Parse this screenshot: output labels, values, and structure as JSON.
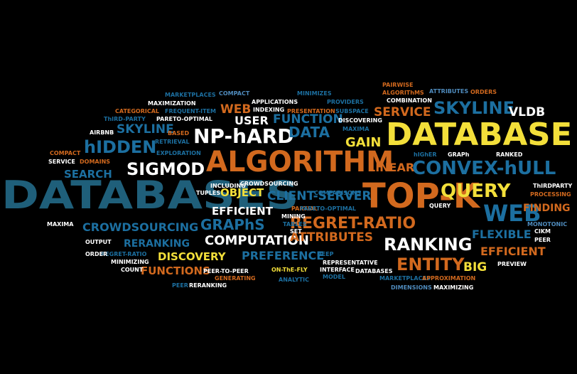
{
  "colors": {
    "background": "#000000",
    "white": "#ffffff",
    "yellow": "#f3df3a",
    "orange": "#d2691e",
    "blue": "#1c6fa0",
    "teal": "#1f5f7a",
    "light_blue": "#4f8bbd"
  },
  "words": [
    {
      "text": "DATABASES",
      "color": "teal"
    },
    {
      "text": "DATABASE",
      "color": "yellow"
    },
    {
      "text": "ALGORITHM",
      "color": "orange"
    },
    {
      "text": "TOP-K",
      "color": "orange"
    },
    {
      "text": "NP-hARD",
      "color": "white"
    },
    {
      "text": "SIGMOD",
      "color": "white"
    },
    {
      "text": "CONVEX-hULL",
      "color": "blue"
    },
    {
      "text": "QUERY",
      "color": "yellow"
    },
    {
      "text": "WEB",
      "color": "blue"
    },
    {
      "text": "WEB",
      "color": "orange"
    },
    {
      "text": "SKYLINE",
      "color": "blue"
    },
    {
      "text": "SKYLINE",
      "color": "blue"
    },
    {
      "text": "hIDDEN",
      "color": "blue"
    },
    {
      "text": "DATA",
      "color": "blue"
    },
    {
      "text": "FUNCTION",
      "color": "blue"
    },
    {
      "text": "SERVICE",
      "color": "orange"
    },
    {
      "text": "VLDB",
      "color": "white"
    },
    {
      "text": "GAIN",
      "color": "yellow"
    },
    {
      "text": "USER",
      "color": "white"
    },
    {
      "text": "LINEAR",
      "color": "orange"
    },
    {
      "text": "SEARCH",
      "color": "blue"
    },
    {
      "text": "REGRET-RATIO",
      "color": "orange"
    },
    {
      "text": "RANKING",
      "color": "white"
    },
    {
      "text": "GRAPhS",
      "color": "blue"
    },
    {
      "text": "CROWDSOURCING",
      "color": "blue"
    },
    {
      "text": "COMPUTATION",
      "color": "white"
    },
    {
      "text": "ATTRIBUTES",
      "color": "orange"
    },
    {
      "text": "CLIENT-SERVER",
      "color": "blue"
    },
    {
      "text": "OBJECT",
      "color": "yellow"
    },
    {
      "text": "EFFICIENT",
      "color": "white"
    },
    {
      "text": "EFFICIENT",
      "color": "orange"
    },
    {
      "text": "ENTITY",
      "color": "orange"
    },
    {
      "text": "BIG",
      "color": "yellow"
    },
    {
      "text": "FINDING",
      "color": "orange"
    },
    {
      "text": "FLEXIBLE",
      "color": "blue"
    },
    {
      "text": "PREFERENCE",
      "color": "blue"
    },
    {
      "text": "DISCOVERY",
      "color": "yellow"
    },
    {
      "text": "FUNCTIONS",
      "color": "orange"
    },
    {
      "text": "RERANKING",
      "color": "blue"
    },
    {
      "text": "MONOTONIC",
      "color": "light_blue"
    },
    {
      "text": "PROCESSING",
      "color": "orange"
    },
    {
      "text": "ThIRDPARTY",
      "color": "white"
    },
    {
      "text": "MAXIMA",
      "color": "white"
    },
    {
      "text": "PAIRWISE",
      "color": "orange"
    },
    {
      "text": "ALGORIThMS",
      "color": "orange"
    },
    {
      "text": "ATTRIBUTES",
      "color": "light_blue"
    },
    {
      "text": "ORDERS",
      "color": "orange"
    },
    {
      "text": "COMBINATION",
      "color": "white"
    },
    {
      "text": "MARKETPLACES",
      "color": "blue"
    },
    {
      "text": "COMPACT",
      "color": "light_blue"
    },
    {
      "text": "MAXIMIZATION",
      "color": "white"
    },
    {
      "text": "APPLICATIONS",
      "color": "white"
    },
    {
      "text": "MINIMIZES",
      "color": "blue"
    },
    {
      "text": "PROVIDERS",
      "color": "blue"
    },
    {
      "text": "CATEGORICAL",
      "color": "orange"
    },
    {
      "text": "FREQUENT-ITEM",
      "color": "blue"
    },
    {
      "text": "INDEXING",
      "color": "white"
    },
    {
      "text": "PRESENTATION",
      "color": "orange"
    },
    {
      "text": "SUBSPACE",
      "color": "blue"
    },
    {
      "text": "ThIRD-PARTY",
      "color": "blue"
    },
    {
      "text": "PARETO-OPTIMAL",
      "color": "white"
    },
    {
      "text": "DISCOVERING",
      "color": "white"
    },
    {
      "text": "MAXIMA",
      "color": "blue"
    },
    {
      "text": "AIRBNB",
      "color": "white"
    },
    {
      "text": "BASED",
      "color": "orange"
    },
    {
      "text": "RETRIEVAL",
      "color": "blue"
    },
    {
      "text": "COMPACT",
      "color": "orange"
    },
    {
      "text": "SERVICE",
      "color": "white"
    },
    {
      "text": "DOMAINS",
      "color": "orange"
    },
    {
      "text": "EXPLORATION",
      "color": "blue"
    },
    {
      "text": "hIGhER",
      "color": "blue"
    },
    {
      "text": "GRAPh",
      "color": "white"
    },
    {
      "text": "RANKED",
      "color": "white"
    },
    {
      "text": "TUPLES",
      "color": "white"
    },
    {
      "text": "INCLUDING",
      "color": "white"
    },
    {
      "text": "CROWDSOURCING",
      "color": "white"
    },
    {
      "text": "COMPARISONS",
      "color": "blue"
    },
    {
      "text": "PARTIAL",
      "color": "orange"
    },
    {
      "text": "PARETO-OPTIMAL",
      "color": "blue"
    },
    {
      "text": "QUERY",
      "color": "white"
    },
    {
      "text": "MINING",
      "color": "white"
    },
    {
      "text": "TABLES",
      "color": "blue"
    },
    {
      "text": "SET",
      "color": "white"
    },
    {
      "text": "OUTPUT",
      "color": "white"
    },
    {
      "text": "REGRET-RATIO",
      "color": "blue"
    },
    {
      "text": "ORDER",
      "color": "white"
    },
    {
      "text": "MINIMIZING",
      "color": "white"
    },
    {
      "text": "COUNT",
      "color": "white"
    },
    {
      "text": "DEEP",
      "color": "blue"
    },
    {
      "text": "REPRESENTATIVE",
      "color": "white"
    },
    {
      "text": "PEER-TO-PEER",
      "color": "white"
    },
    {
      "text": "GENERATING",
      "color": "orange"
    },
    {
      "text": "ON-ThE-FLY",
      "color": "yellow"
    },
    {
      "text": "INTERFACE",
      "color": "white"
    },
    {
      "text": "MODEL",
      "color": "blue"
    },
    {
      "text": "DATABASES",
      "color": "white"
    },
    {
      "text": "ANALYTIC",
      "color": "blue"
    },
    {
      "text": "MARKETPLACES",
      "color": "blue"
    },
    {
      "text": "APPROXIMATION",
      "color": "orange"
    },
    {
      "text": "DIMENSIONS",
      "color": "light_blue"
    },
    {
      "text": "MAXIMIZING",
      "color": "white"
    },
    {
      "text": "PEER",
      "color": "blue"
    },
    {
      "text": "RERANKING",
      "color": "white"
    },
    {
      "text": "PREVIEW",
      "color": "white"
    },
    {
      "text": "CIKM",
      "color": "white"
    },
    {
      "text": "PEER",
      "color": "white"
    }
  ]
}
